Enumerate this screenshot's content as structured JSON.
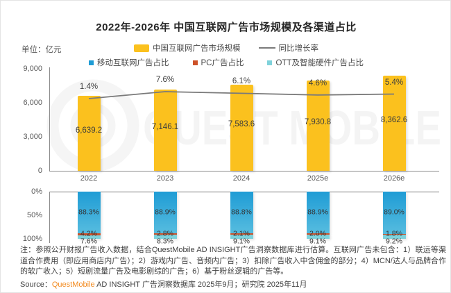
{
  "title": "2022年-2026年 中国互联网广告市场规模及各渠道占比",
  "unit_label": "单位：亿元",
  "watermark": "QUEST MOBILE",
  "colors": {
    "bar_yellow": "#FBC11E",
    "growth_line_gray": "#7A7A7A",
    "mobile_blue": "#1F9CD5",
    "mobile_blue_light": "#56BCDF",
    "pc_red": "#CD5229",
    "ott_cyan": "#7FD2DB",
    "brand_orange": "#F28A1E"
  },
  "legend": {
    "market": "中国互联网广告市场规模",
    "growth": "同比增长率",
    "mobile": "移动互联网广告占比",
    "pc": "PC广告占比",
    "ott": "OTT及智能硬件广告占比"
  },
  "chart_data": [
    {
      "type": "bar",
      "title": "中国互联网广告市场规模（单位：亿元）",
      "categories": [
        "2022",
        "2023",
        "2024",
        "2025e",
        "2026e"
      ],
      "series": [
        {
          "name": "中国互联网广告市场规模",
          "type": "bar",
          "values": [
            6639.2,
            7146.1,
            7583.6,
            7930.8,
            8362.6
          ],
          "labels": [
            "6,639.2",
            "7,146.1",
            "7,583.6",
            "7,930.8",
            "8,362.6"
          ]
        },
        {
          "name": "同比增长率",
          "type": "line",
          "values": [
            1.4,
            7.6,
            6.1,
            4.6,
            5.4
          ],
          "labels": [
            "1.4%",
            "7.6%",
            "6.1%",
            "4.6%",
            "5.4%"
          ]
        }
      ],
      "ylim": [
        0,
        9000
      ],
      "yticks": [
        "9,000",
        "6,000",
        "3,000",
        "0"
      ],
      "grid": false,
      "legend_position": "top"
    },
    {
      "type": "bar",
      "subtype": "stacked_percent_top_down",
      "categories": [
        "2022",
        "2023",
        "2024",
        "2025e",
        "2026e"
      ],
      "series": [
        {
          "name": "移动互联网广告占比",
          "values": [
            88.3,
            88.9,
            88.8,
            88.9,
            89.0
          ],
          "labels": [
            "88.3%",
            "88.9%",
            "88.8%",
            "88.9%",
            "89.0%"
          ]
        },
        {
          "name": "PC广告占比",
          "values": [
            4.2,
            2.8,
            2.1,
            2.0,
            1.8
          ],
          "labels": [
            "4.2%",
            "2.8%",
            "2.1%",
            "2.0%",
            "1.8%"
          ]
        },
        {
          "name": "OTT及智能硬件广告占比",
          "values": [
            7.6,
            8.3,
            9.1,
            9.1,
            9.2
          ],
          "labels": [
            "7.6%",
            "8.3%",
            "9.1%",
            "9.1%",
            "9.2%"
          ]
        }
      ],
      "ylim": [
        0,
        100
      ],
      "yticks": [
        "0%",
        "50%",
        "100%"
      ],
      "grid": false
    }
  ],
  "note": "注：参照公开财报广告收入数据，结合QuestMobile AD INSIGHT广告洞察数据库进行估算。互联网广告未包含：1）联运等渠道合作费用（即应用商店内广告）；2）游戏内广告、音频内广告；3）扣除广告收入中含佣金的部分；4）MCN/达人与品牌合作的软广收入；5）短剧流量广告及电影剧综的广告；6）基于粉丝逻辑的广告等。",
  "source": {
    "prefix": "Source：",
    "brand": "QuestMobile",
    "rest": " AD INSIGHT 广告洞察数据库 2025年9月；研究院 2025年11月"
  }
}
